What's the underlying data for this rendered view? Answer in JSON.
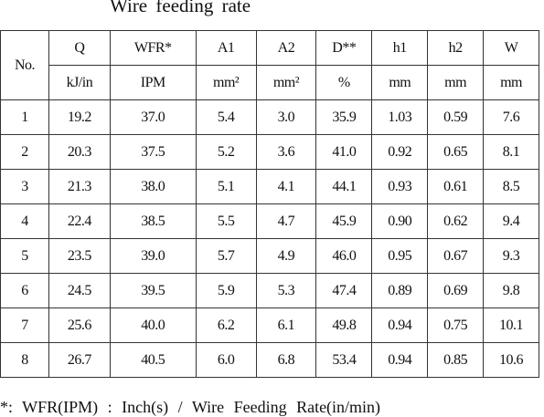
{
  "title": "Wire feeding rate",
  "table": {
    "header": [
      "No.",
      "Q",
      "WFR*",
      "A1",
      "A2",
      "D**",
      "h1",
      "h2",
      "W"
    ],
    "units": [
      "kJ/in",
      "IPM",
      "mm²",
      "mm²",
      "%",
      "mm",
      "mm",
      "mm"
    ],
    "rows": [
      [
        "1",
        "19.2",
        "37.0",
        "5.4",
        "3.0",
        "35.9",
        "1.03",
        "0.59",
        "7.6"
      ],
      [
        "2",
        "20.3",
        "37.5",
        "5.2",
        "3.6",
        "41.0",
        "0.92",
        "0.65",
        "8.1"
      ],
      [
        "3",
        "21.3",
        "38.0",
        "5.1",
        "4.1",
        "44.1",
        "0.93",
        "0.61",
        "8.5"
      ],
      [
        "4",
        "22.4",
        "38.5",
        "5.5",
        "4.7",
        "45.9",
        "0.90",
        "0.62",
        "9.4"
      ],
      [
        "5",
        "23.5",
        "39.0",
        "5.7",
        "4.9",
        "46.0",
        "0.95",
        "0.67",
        "9.3"
      ],
      [
        "6",
        "24.5",
        "39.5",
        "5.9",
        "5.3",
        "47.4",
        "0.89",
        "0.69",
        "9.8"
      ],
      [
        "7",
        "25.6",
        "40.0",
        "6.2",
        "6.1",
        "49.8",
        "0.94",
        "0.75",
        "10.1"
      ],
      [
        "8",
        "26.7",
        "40.5",
        "6.0",
        "6.8",
        "53.4",
        "0.94",
        "0.85",
        "10.6"
      ]
    ]
  },
  "footnote": "*: WFR(IPM) : Inch(s) / Wire Feeding Rate(in/min)"
}
